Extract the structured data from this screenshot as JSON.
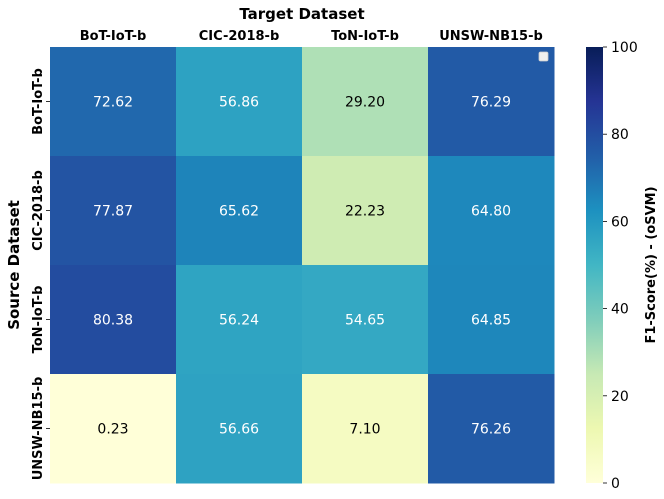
{
  "chart_data": {
    "type": "heatmap",
    "title": "",
    "xlabel": "Target Dataset",
    "ylabel": "Source Dataset",
    "x_categories": [
      "BoT-IoT-b",
      "CIC-2018-b",
      "ToN-IoT-b",
      "UNSW-NB15-b"
    ],
    "y_categories": [
      "BoT-IoT-b",
      "CIC-2018-b",
      "ToN-IoT-b",
      "UNSW-NB15-b"
    ],
    "values": [
      [
        "72.62",
        "56.86",
        "29.20",
        "76.29"
      ],
      [
        "77.87",
        "65.62",
        "22.23",
        "64.80"
      ],
      [
        "80.38",
        "56.24",
        "54.65",
        "64.85"
      ],
      [
        "0.23",
        "56.66",
        "7.10",
        "76.26"
      ]
    ],
    "colorbar": {
      "label": "F1-Score(%) - (oSVM)",
      "range": [
        0,
        100
      ],
      "ticks": [
        "0",
        "20",
        "40",
        "60",
        "80",
        "100"
      ],
      "colormap": "YlGnBu"
    },
    "legend": "empty legend box, top-right"
  }
}
